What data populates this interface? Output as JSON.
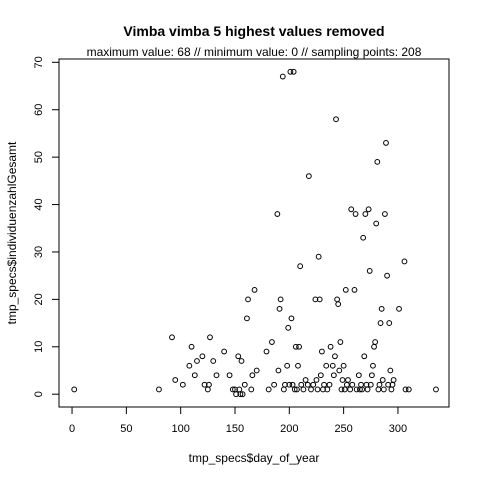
{
  "chart_data": {
    "type": "scatter",
    "title": "Vimba vimba  5 highest values removed",
    "subtitle": "maximum value: 68  //  minimum value: 0  // sampling points: 208",
    "xlabel": "tmp_specs$day_of_year",
    "ylabel": "tmp_specs$individuenzahlGesamt",
    "xlim": [
      -12,
      347
    ],
    "ylim": [
      -2.7,
      70.7
    ],
    "xticks": [
      0,
      50,
      100,
      150,
      200,
      250,
      300
    ],
    "yticks": [
      0,
      10,
      20,
      30,
      40,
      50,
      60,
      70
    ],
    "xtick_labels": [
      "0",
      "50",
      "100",
      "150",
      "200",
      "250",
      "300"
    ],
    "ytick_labels": [
      "0",
      "10",
      "20",
      "30",
      "40",
      "50",
      "60",
      "70"
    ],
    "grid": false,
    "legend": "none",
    "marker": "open-circle",
    "colors": {
      "points": "#000000",
      "axes": "#000000",
      "background": "#ffffff"
    },
    "points": [
      {
        "x": 2,
        "y": 1
      },
      {
        "x": 80,
        "y": 1
      },
      {
        "x": 92,
        "y": 12
      },
      {
        "x": 95,
        "y": 3
      },
      {
        "x": 102,
        "y": 2
      },
      {
        "x": 108,
        "y": 6
      },
      {
        "x": 110,
        "y": 10
      },
      {
        "x": 113,
        "y": 4
      },
      {
        "x": 115,
        "y": 7
      },
      {
        "x": 120,
        "y": 8
      },
      {
        "x": 122,
        "y": 2
      },
      {
        "x": 125,
        "y": 1
      },
      {
        "x": 126,
        "y": 2
      },
      {
        "x": 127,
        "y": 12
      },
      {
        "x": 130,
        "y": 7
      },
      {
        "x": 133,
        "y": 4
      },
      {
        "x": 140,
        "y": 9
      },
      {
        "x": 145,
        "y": 4
      },
      {
        "x": 148,
        "y": 1
      },
      {
        "x": 150,
        "y": 1
      },
      {
        "x": 151,
        "y": 0
      },
      {
        "x": 153,
        "y": 8
      },
      {
        "x": 154,
        "y": 1
      },
      {
        "x": 155,
        "y": 0
      },
      {
        "x": 156,
        "y": 7
      },
      {
        "x": 157,
        "y": 0
      },
      {
        "x": 159,
        "y": 2
      },
      {
        "x": 161,
        "y": 16
      },
      {
        "x": 162,
        "y": 20
      },
      {
        "x": 165,
        "y": 1
      },
      {
        "x": 166,
        "y": 4
      },
      {
        "x": 168,
        "y": 22
      },
      {
        "x": 170,
        "y": 5
      },
      {
        "x": 179,
        "y": 9
      },
      {
        "x": 181,
        "y": 1
      },
      {
        "x": 184,
        "y": 11
      },
      {
        "x": 186,
        "y": 2
      },
      {
        "x": 189,
        "y": 38
      },
      {
        "x": 190,
        "y": 5
      },
      {
        "x": 191,
        "y": 18
      },
      {
        "x": 192,
        "y": 20
      },
      {
        "x": 194,
        "y": 67
      },
      {
        "x": 195,
        "y": 1
      },
      {
        "x": 196,
        "y": 2
      },
      {
        "x": 198,
        "y": 6
      },
      {
        "x": 199,
        "y": 14
      },
      {
        "x": 200,
        "y": 2
      },
      {
        "x": 201,
        "y": 68
      },
      {
        "x": 202,
        "y": 16
      },
      {
        "x": 203,
        "y": 2
      },
      {
        "x": 204,
        "y": 68
      },
      {
        "x": 205,
        "y": 1
      },
      {
        "x": 206,
        "y": 10
      },
      {
        "x": 207,
        "y": 1
      },
      {
        "x": 208,
        "y": 6
      },
      {
        "x": 209,
        "y": 10
      },
      {
        "x": 210,
        "y": 27
      },
      {
        "x": 211,
        "y": 2
      },
      {
        "x": 213,
        "y": 1
      },
      {
        "x": 215,
        "y": 3
      },
      {
        "x": 217,
        "y": 2
      },
      {
        "x": 218,
        "y": 46
      },
      {
        "x": 220,
        "y": 1
      },
      {
        "x": 222,
        "y": 2
      },
      {
        "x": 224,
        "y": 20
      },
      {
        "x": 225,
        "y": 3
      },
      {
        "x": 226,
        "y": 1
      },
      {
        "x": 227,
        "y": 29
      },
      {
        "x": 228,
        "y": 20
      },
      {
        "x": 229,
        "y": 4
      },
      {
        "x": 230,
        "y": 9
      },
      {
        "x": 231,
        "y": 1
      },
      {
        "x": 232,
        "y": 2
      },
      {
        "x": 234,
        "y": 6
      },
      {
        "x": 235,
        "y": 1
      },
      {
        "x": 237,
        "y": 2
      },
      {
        "x": 238,
        "y": 10
      },
      {
        "x": 240,
        "y": 6
      },
      {
        "x": 241,
        "y": 4
      },
      {
        "x": 242,
        "y": 8
      },
      {
        "x": 243,
        "y": 58
      },
      {
        "x": 244,
        "y": 20
      },
      {
        "x": 245,
        "y": 19
      },
      {
        "x": 246,
        "y": 5
      },
      {
        "x": 247,
        "y": 11
      },
      {
        "x": 248,
        "y": 1
      },
      {
        "x": 249,
        "y": 3
      },
      {
        "x": 250,
        "y": 6
      },
      {
        "x": 251,
        "y": 1
      },
      {
        "x": 252,
        "y": 22
      },
      {
        "x": 253,
        "y": 2
      },
      {
        "x": 254,
        "y": 3
      },
      {
        "x": 256,
        "y": 1
      },
      {
        "x": 257,
        "y": 39
      },
      {
        "x": 258,
        "y": 2
      },
      {
        "x": 260,
        "y": 22
      },
      {
        "x": 261,
        "y": 38
      },
      {
        "x": 262,
        "y": 1
      },
      {
        "x": 264,
        "y": 4
      },
      {
        "x": 265,
        "y": 1
      },
      {
        "x": 266,
        "y": 2
      },
      {
        "x": 267,
        "y": 1
      },
      {
        "x": 268,
        "y": 33
      },
      {
        "x": 269,
        "y": 8
      },
      {
        "x": 270,
        "y": 38
      },
      {
        "x": 271,
        "y": 2
      },
      {
        "x": 272,
        "y": 1
      },
      {
        "x": 273,
        "y": 39
      },
      {
        "x": 274,
        "y": 26
      },
      {
        "x": 275,
        "y": 2
      },
      {
        "x": 276,
        "y": 4
      },
      {
        "x": 277,
        "y": 6
      },
      {
        "x": 278,
        "y": 10
      },
      {
        "x": 279,
        "y": 11
      },
      {
        "x": 280,
        "y": 36
      },
      {
        "x": 281,
        "y": 49
      },
      {
        "x": 282,
        "y": 1
      },
      {
        "x": 283,
        "y": 2
      },
      {
        "x": 284,
        "y": 15
      },
      {
        "x": 285,
        "y": 18
      },
      {
        "x": 286,
        "y": 3
      },
      {
        "x": 287,
        "y": 1
      },
      {
        "x": 288,
        "y": 38
      },
      {
        "x": 289,
        "y": 53
      },
      {
        "x": 290,
        "y": 25
      },
      {
        "x": 291,
        "y": 2
      },
      {
        "x": 292,
        "y": 15
      },
      {
        "x": 293,
        "y": 5
      },
      {
        "x": 294,
        "y": 1
      },
      {
        "x": 295,
        "y": 2
      },
      {
        "x": 296,
        "y": 3
      },
      {
        "x": 301,
        "y": 18
      },
      {
        "x": 306,
        "y": 28
      },
      {
        "x": 307,
        "y": 1
      },
      {
        "x": 310,
        "y": 1
      },
      {
        "x": 335,
        "y": 1
      }
    ]
  }
}
